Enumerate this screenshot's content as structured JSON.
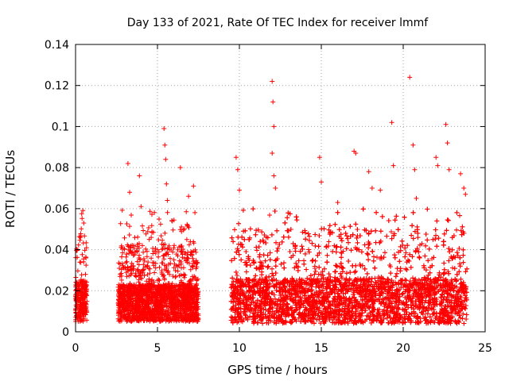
{
  "chart_data": {
    "type": "scatter",
    "title": "Day 133 of 2021, Rate Of TEC Index for receiver lmmf",
    "xlabel": "GPS time / hours",
    "ylabel": "ROTI / TECUs",
    "xlim": [
      0,
      25
    ],
    "ylim": [
      0,
      0.14
    ],
    "x_ticks": [
      0,
      5,
      10,
      15,
      20,
      25
    ],
    "y_ticks": [
      0,
      0.02,
      0.04,
      0.06,
      0.08,
      0.1,
      0.12,
      0.14
    ],
    "x_tick_labels": [
      "0",
      "5",
      "10",
      "15",
      "20",
      "25"
    ],
    "y_tick_labels": [
      "0",
      "0.02",
      "0.04",
      "0.06",
      "0.08",
      "0.1",
      "0.12",
      "0.14"
    ],
    "grid": true,
    "marker": "+",
    "color": "#ff0000",
    "series": [
      {
        "data_segments": [
          {
            "x_range": [
              0.0,
              0.7
            ],
            "baseline": 0.015,
            "spread": 0.02
          },
          {
            "x_range": [
              2.6,
              7.5
            ],
            "baseline": 0.014,
            "spread": 0.018
          },
          {
            "x_range": [
              9.5,
              23.9
            ],
            "baseline": 0.015,
            "spread": 0.022
          }
        ],
        "notable_points": [
          [
            0.1,
            0.04
          ],
          [
            0.3,
            0.046
          ],
          [
            0.5,
            0.053
          ],
          [
            3.2,
            0.082
          ],
          [
            3.3,
            0.068
          ],
          [
            3.9,
            0.076
          ],
          [
            4.0,
            0.061
          ],
          [
            4.5,
            0.045
          ],
          [
            5.4,
            0.099
          ],
          [
            5.45,
            0.091
          ],
          [
            5.5,
            0.084
          ],
          [
            5.55,
            0.072
          ],
          [
            5.6,
            0.064
          ],
          [
            6.4,
            0.08
          ],
          [
            6.9,
            0.066
          ],
          [
            7.2,
            0.071
          ],
          [
            9.8,
            0.085
          ],
          [
            9.9,
            0.079
          ],
          [
            10.0,
            0.069
          ],
          [
            12.0,
            0.122
          ],
          [
            12.05,
            0.112
          ],
          [
            12.1,
            0.1
          ],
          [
            12.0,
            0.087
          ],
          [
            12.1,
            0.076
          ],
          [
            12.2,
            0.07
          ],
          [
            14.9,
            0.085
          ],
          [
            15.0,
            0.073
          ],
          [
            16.0,
            0.063
          ],
          [
            17.0,
            0.088
          ],
          [
            17.1,
            0.087
          ],
          [
            17.9,
            0.078
          ],
          [
            18.1,
            0.07
          ],
          [
            18.6,
            0.069
          ],
          [
            19.3,
            0.102
          ],
          [
            19.4,
            0.081
          ],
          [
            20.4,
            0.124
          ],
          [
            20.6,
            0.091
          ],
          [
            20.7,
            0.079
          ],
          [
            20.8,
            0.065
          ],
          [
            22.0,
            0.085
          ],
          [
            22.1,
            0.081
          ],
          [
            22.6,
            0.101
          ],
          [
            22.7,
            0.092
          ],
          [
            22.8,
            0.079
          ],
          [
            23.5,
            0.077
          ],
          [
            23.7,
            0.07
          ],
          [
            23.8,
            0.067
          ]
        ]
      }
    ]
  }
}
